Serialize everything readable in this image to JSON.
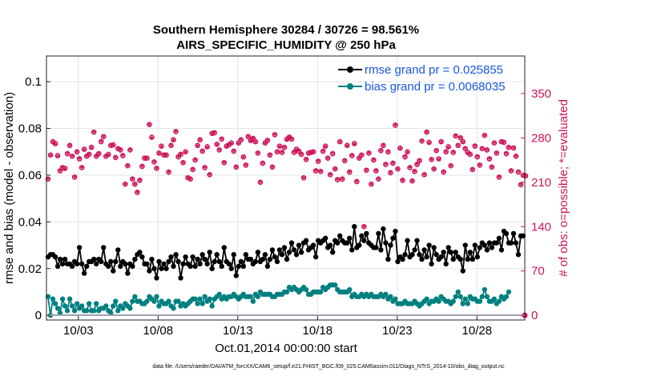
{
  "chart_data": {
    "type": "line",
    "title": "Southern Hemisphere 30284 / 30726 = 98.561%",
    "subtitle": "AIRS_SPECIFIC_HUMIDITY @ 250 hPa",
    "xlabel": "Oct.01,2014 00:00:00 start",
    "ylabel_left": "rmse and bias (model - observation)",
    "ylabel_right": "# of obs: o=possible; *=evaluated",
    "x_ticks": [
      "10/03",
      "10/08",
      "10/13",
      "10/18",
      "10/23",
      "10/28"
    ],
    "x_tick_days": [
      3,
      8,
      13,
      18,
      23,
      28
    ],
    "xlim_days": [
      1.0,
      31.0
    ],
    "y_left_ticks": [
      "0",
      "0.02",
      "0.04",
      "0.06",
      "0.08",
      "0.1"
    ],
    "y_left_tick_values": [
      0,
      0.02,
      0.04,
      0.06,
      0.08,
      0.1
    ],
    "ylim_left": [
      -0.002,
      0.111
    ],
    "y_right_ticks": [
      "0",
      "70",
      "140",
      "210",
      "280",
      "350"
    ],
    "y_right_tick_values": [
      0,
      70,
      140,
      210,
      280,
      350
    ],
    "ylim_right": [
      -7.36,
      409.2
    ],
    "grid": true,
    "legend_position": "top-right",
    "colors": {
      "rmse": "#000000",
      "bias": "#008080",
      "obs": "#cc1455",
      "legend_text": "#1a56e0"
    },
    "series": [
      {
        "name": "rmse grand pr = 0.025855",
        "axis": "left",
        "values": [
          0.025,
          0.026,
          0.026,
          0.025,
          0.021,
          0.024,
          0.022,
          0.024,
          0.022,
          0.022,
          0.021,
          0.023,
          0.022,
          0.029,
          0.022,
          0.018,
          0.021,
          0.023,
          0.023,
          0.024,
          0.022,
          0.024,
          0.023,
          0.029,
          0.022,
          0.021,
          0.023,
          0.019,
          0.023,
          0.028,
          0.021,
          0.023,
          0.022,
          0.018,
          0.022,
          0.021,
          0.024,
          0.026,
          0.027,
          0.025,
          0.022,
          0.022,
          0.019,
          0.024,
          0.02,
          0.016,
          0.023,
          0.02,
          0.022,
          0.02,
          0.023,
          0.025,
          0.021,
          0.026,
          0.023,
          0.016,
          0.022,
          0.025,
          0.022,
          0.021,
          0.025,
          0.021,
          0.024,
          0.022,
          0.026,
          0.024,
          0.022,
          0.027,
          0.02,
          0.023,
          0.026,
          0.023,
          0.021,
          0.029,
          0.023,
          0.022,
          0.02,
          0.026,
          0.017,
          0.021,
          0.023,
          0.021,
          0.026,
          0.024,
          0.024,
          0.022,
          0.023,
          0.027,
          0.023,
          0.024,
          0.026,
          0.021,
          0.024,
          0.028,
          0.025,
          0.023,
          0.028,
          0.026,
          0.029,
          0.024,
          0.027,
          0.031,
          0.028,
          0.026,
          0.03,
          0.027,
          0.031,
          0.032,
          0.028,
          0.029,
          0.03,
          0.025,
          0.032,
          0.031,
          0.032,
          0.033,
          0.029,
          0.03,
          0.027,
          0.032,
          0.031,
          0.034,
          0.032,
          0.031,
          0.031,
          0.033,
          0.028,
          0.038,
          0.029,
          0.03,
          0.034,
          0.032,
          0.035,
          0.031,
          0.03,
          0.029,
          0.029,
          0.035,
          0.028,
          0.037,
          0.031,
          0.024,
          0.03,
          0.033,
          0.036,
          0.023,
          0.025,
          0.024,
          0.026,
          0.032,
          0.025,
          0.026,
          0.028,
          0.032,
          0.026,
          0.024,
          0.028,
          0.025,
          0.03,
          0.022,
          0.029,
          0.026,
          0.024,
          0.025,
          0.027,
          0.022,
          0.029,
          0.027,
          0.024,
          0.027,
          0.025,
          0.024,
          0.019,
          0.03,
          0.024,
          0.027,
          0.024,
          0.03,
          0.025,
          0.029,
          0.031,
          0.03,
          0.028,
          0.031,
          0.029,
          0.031,
          0.031,
          0.033,
          0.028,
          0.036,
          0.035,
          0.031,
          0.031,
          0.035,
          0.031,
          0.026,
          0.034,
          0.034
        ]
      },
      {
        "name": "bias grand pr = 0.0068035",
        "axis": "left",
        "values": [
          0.008,
          0.0,
          0.007,
          0.005,
          0.003,
          0.001,
          0.007,
          0.004,
          0.002,
          0.007,
          0.004,
          0.002,
          0.005,
          0.003,
          0.004,
          0.002,
          0.002,
          0.005,
          0.002,
          0.002,
          0.005,
          0.002,
          0.003,
          0.003,
          0.004,
          0.002,
          0.001,
          0.004,
          0.006,
          0.002,
          0.004,
          0.003,
          0.005,
          0.004,
          0.003,
          0.006,
          0.008,
          0.006,
          0.006,
          0.005,
          0.005,
          0.006,
          0.008,
          0.007,
          0.006,
          0.008,
          0.004,
          0.006,
          0.005,
          0.005,
          0.006,
          0.004,
          0.003,
          0.006,
          0.006,
          0.004,
          0.005,
          0.004,
          0.005,
          0.006,
          0.007,
          0.007,
          0.005,
          0.007,
          0.005,
          0.008,
          0.006,
          0.007,
          0.004,
          0.007,
          0.008,
          0.009,
          0.007,
          0.008,
          0.007,
          0.008,
          0.008,
          0.009,
          0.008,
          0.007,
          0.008,
          0.009,
          0.008,
          0.008,
          0.008,
          0.006,
          0.009,
          0.008,
          0.01,
          0.009,
          0.009,
          0.009,
          0.009,
          0.008,
          0.008,
          0.009,
          0.009,
          0.009,
          0.01,
          0.01,
          0.012,
          0.011,
          0.012,
          0.011,
          0.01,
          0.011,
          0.012,
          0.011,
          0.009,
          0.009,
          0.01,
          0.01,
          0.01,
          0.01,
          0.012,
          0.011,
          0.012,
          0.013,
          0.013,
          0.013,
          0.011,
          0.01,
          0.01,
          0.01,
          0.01,
          0.011,
          0.008,
          0.009,
          0.008,
          0.008,
          0.009,
          0.008,
          0.009,
          0.008,
          0.009,
          0.008,
          0.008,
          0.008,
          0.009,
          0.008,
          0.009,
          0.007,
          0.008,
          0.006,
          0.007,
          0.005,
          0.005,
          0.005,
          0.006,
          0.005,
          0.005,
          0.005,
          0.006,
          0.005,
          0.004,
          0.005,
          0.006,
          0.007,
          0.005,
          0.006,
          0.006,
          0.007,
          0.006,
          0.008,
          0.007,
          0.006,
          0.006,
          0.005,
          0.006,
          0.008,
          0.01,
          0.008,
          0.005,
          0.007,
          0.005,
          0.008,
          0.007,
          0.007,
          0.006,
          0.006,
          0.008,
          0.011,
          0.008,
          0.006,
          0.006,
          0.007,
          0.005,
          0.006,
          0.008,
          0.007,
          0.008,
          0.01
        ]
      },
      {
        "name": "possible",
        "axis": "right",
        "marker": "o",
        "values": [
          215,
          253,
          274,
          271,
          252,
          228,
          233,
          232,
          255,
          268,
          251,
          218,
          258,
          247,
          233,
          262,
          251,
          254,
          265,
          289,
          251,
          255,
          274,
          282,
          251,
          254,
          268,
          269,
          249,
          263,
          261,
          252,
          207,
          236,
          261,
          215,
          207,
          194,
          213,
          235,
          248,
          248,
          301,
          281,
          242,
          232,
          256,
          267,
          253,
          253,
          226,
          268,
          277,
          290,
          250,
          254,
          241,
          258,
          217,
          215,
          230,
          245,
          268,
          277,
          259,
          233,
          266,
          222,
          287,
          288,
          270,
          261,
          278,
          241,
          267,
          269,
          272,
          259,
          234,
          272,
          277,
          250,
          237,
          282,
          276,
          279,
          274,
          256,
          210,
          240,
          272,
          276,
          253,
          234,
          285,
          258,
          267,
          257,
          265,
          278,
          281,
          278,
          257,
          262,
          259,
          254,
          217,
          246,
          256,
          257,
          258,
          228,
          243,
          227,
          259,
          267,
          248,
          222,
          255,
          231,
          214,
          274,
          215,
          244,
          268,
          226,
          252,
          271,
          211,
          248,
          253,
          140,
          229,
          256,
          207,
          245,
          228,
          215,
          260,
          268,
          238,
          258,
          225,
          240,
          300,
          231,
          264,
          213,
          250,
          258,
          233,
          212,
          227,
          238,
          244,
          275,
          222,
          289,
          273,
          246,
          231,
          260,
          247,
          274,
          226,
          258,
          266,
          236,
          257,
          283,
          268,
          280,
          274,
          263,
          257,
          254,
          230,
          267,
          250,
          237,
          263,
          284,
          261,
          247,
          234,
          272,
          256,
          218,
          274,
          273,
          255,
          265,
          228,
          264,
          251,
          226,
          206,
          221,
          220
        ]
      },
      {
        "name": "evaluated",
        "axis": "right",
        "marker": "*",
        "values": [
          213,
          250,
          271,
          268,
          249,
          226,
          231,
          229,
          253,
          266,
          249,
          216,
          256,
          245,
          231,
          259,
          249,
          252,
          262,
          287,
          249,
          253,
          272,
          280,
          249,
          251,
          266,
          266,
          247,
          261,
          259,
          250,
          205,
          234,
          259,
          213,
          205,
          192,
          211,
          233,
          246,
          246,
          299,
          278,
          240,
          230,
          253,
          264,
          251,
          251,
          224,
          266,
          274,
          288,
          248,
          252,
          239,
          255,
          215,
          213,
          228,
          243,
          265,
          275,
          257,
          231,
          263,
          220,
          285,
          286,
          267,
          259,
          276,
          239,
          264,
          267,
          269,
          257,
          232,
          269,
          275,
          247,
          235,
          280,
          273,
          277,
          271,
          254,
          208,
          238,
          269,
          274,
          251,
          232,
          283,
          256,
          264,
          255,
          263,
          275,
          279,
          276,
          255,
          259,
          257,
          252,
          215,
          244,
          253,
          255,
          256,
          226,
          241,
          225,
          257,
          264,
          246,
          220,
          253,
          229,
          212,
          271,
          213,
          242,
          265,
          224,
          250,
          268,
          209,
          246,
          251,
          138,
          227,
          254,
          205,
          243,
          226,
          213,
          258,
          266,
          236,
          256,
          223,
          238,
          298,
          229,
          261,
          211,
          248,
          255,
          231,
          210,
          225,
          236,
          242,
          273,
          220,
          287,
          270,
          244,
          229,
          258,
          244,
          271,
          224,
          256,
          263,
          234,
          255,
          281,
          266,
          278,
          271,
          261,
          254,
          252,
          228,
          265,
          248,
          235,
          261,
          282,
          259,
          245,
          232,
          270,
          254,
          216,
          271,
          271,
          253,
          263,
          226,
          262,
          249,
          224,
          204,
          218,
          218
        ]
      }
    ]
  },
  "legend": {
    "rmse_label": "rmse grand pr = 0.025855",
    "bias_label": "bias grand pr = 0.0068035"
  },
  "footer": "data file: /Users/raeder/DAI/ATM_forcXX/CAM6_setup/f.e21.FHIST_BGC.f09_025.CAM6assim.011/Diags_NTrS_2014-10/obs_diag_output.nc"
}
